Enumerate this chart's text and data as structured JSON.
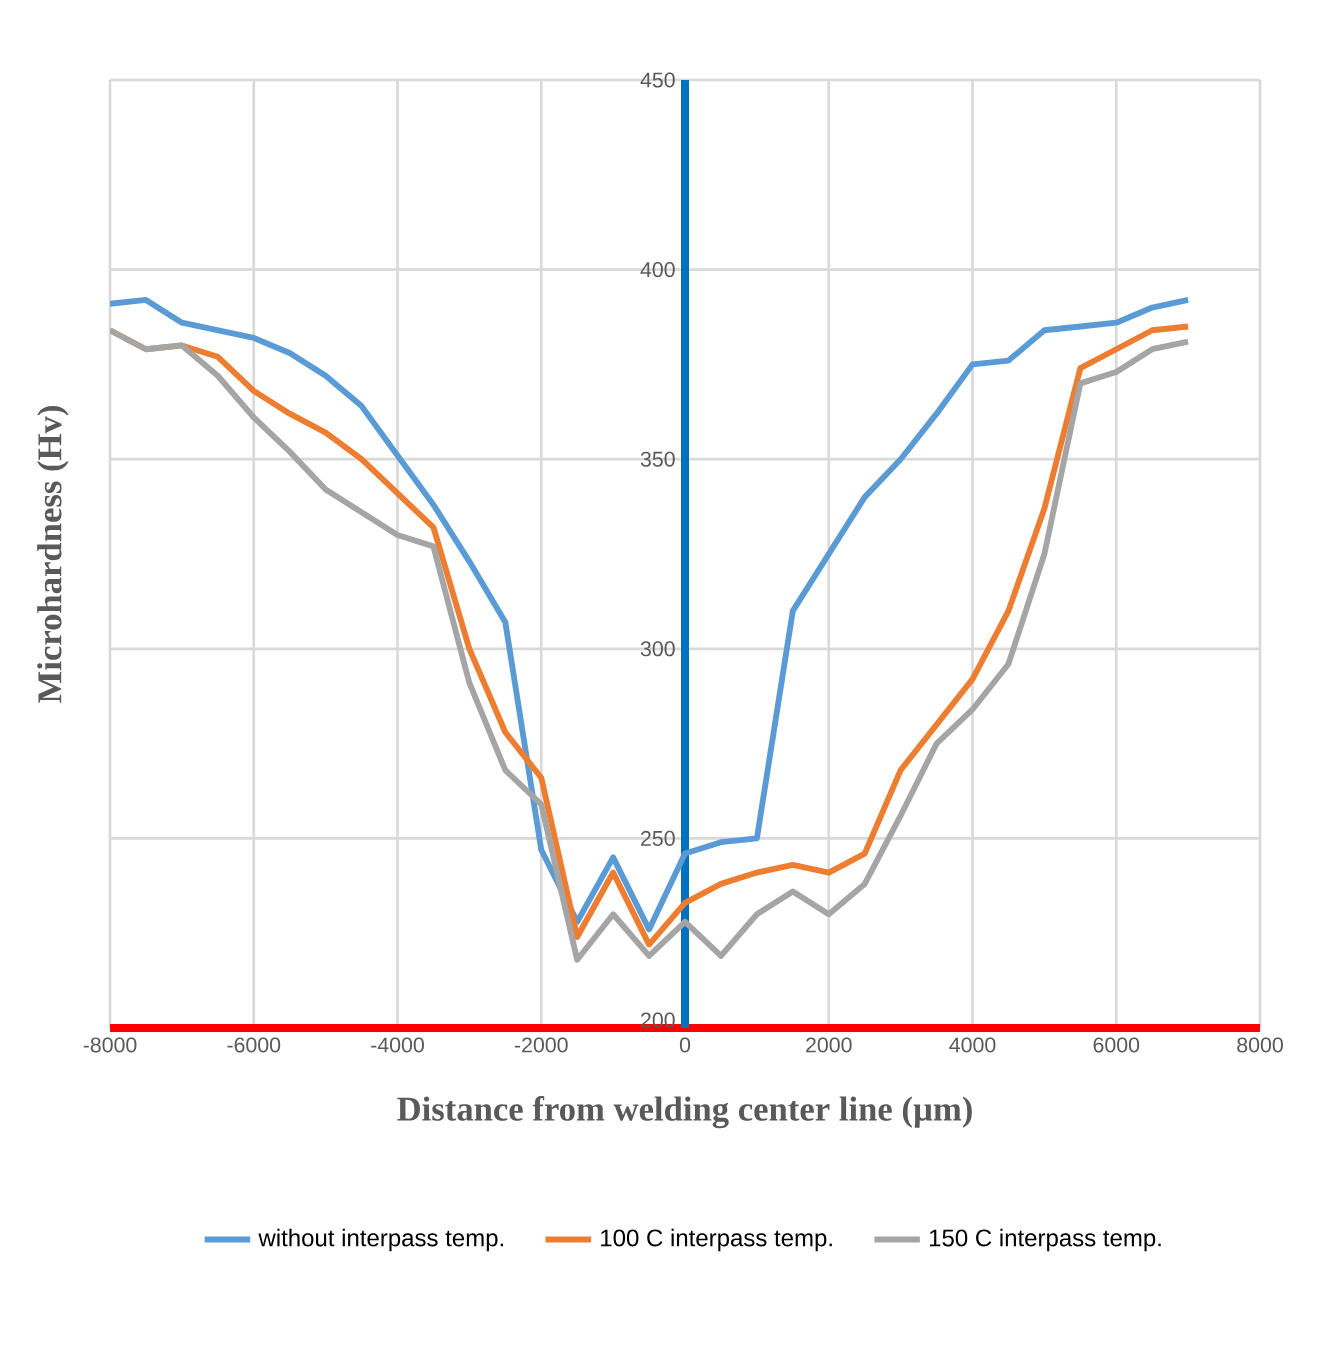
{
  "chart_data": {
    "type": "line",
    "xlabel": "Distance from welding center line (µm)",
    "ylabel": "Microhardness (Hv)",
    "x": [
      -8000,
      -7500,
      -7000,
      -6500,
      -6000,
      -5500,
      -5000,
      -4500,
      -4000,
      -3500,
      -3000,
      -2500,
      -2000,
      -1500,
      -1000,
      -500,
      0,
      500,
      1000,
      1500,
      2000,
      2500,
      3000,
      3500,
      4000,
      4500,
      5000,
      5500,
      6000,
      6500,
      7000
    ],
    "series": [
      {
        "name": "without interpass temp.",
        "color": "#5b9bd5",
        "values": [
          391,
          392,
          386,
          384,
          382,
          378,
          372,
          364,
          351,
          338,
          323,
          307,
          247,
          228,
          245,
          226,
          246,
          249,
          250,
          310,
          325,
          340,
          350,
          362,
          375,
          376,
          384,
          385,
          386,
          390,
          392
        ]
      },
      {
        "name": "100 C interpass temp.",
        "color": "#ed7d31",
        "values": [
          384,
          379,
          380,
          377,
          368,
          362,
          357,
          350,
          341,
          332,
          300,
          278,
          266,
          224,
          241,
          222,
          233,
          238,
          241,
          243,
          241,
          246,
          268,
          280,
          292,
          310,
          337,
          374,
          379,
          384,
          385
        ]
      },
      {
        "name": "150 C interpass temp.",
        "color": "#a5a5a5",
        "values": [
          384,
          379,
          380,
          372,
          361,
          352,
          342,
          336,
          330,
          327,
          291,
          268,
          259,
          218,
          230,
          219,
          228,
          219,
          230,
          236,
          230,
          238,
          256,
          275,
          284,
          296,
          325,
          370,
          373,
          379,
          381
        ]
      }
    ],
    "xlim": [
      -8000,
      8000
    ],
    "xticks": [
      -8000,
      -6000,
      -4000,
      -2000,
      0,
      2000,
      4000,
      6000,
      8000
    ],
    "ylim": [
      200,
      450
    ],
    "yticks": [
      200,
      250,
      300,
      350,
      400,
      450
    ],
    "grid": true,
    "legend": "bottom",
    "marker": "none",
    "line_style": "solid"
  }
}
